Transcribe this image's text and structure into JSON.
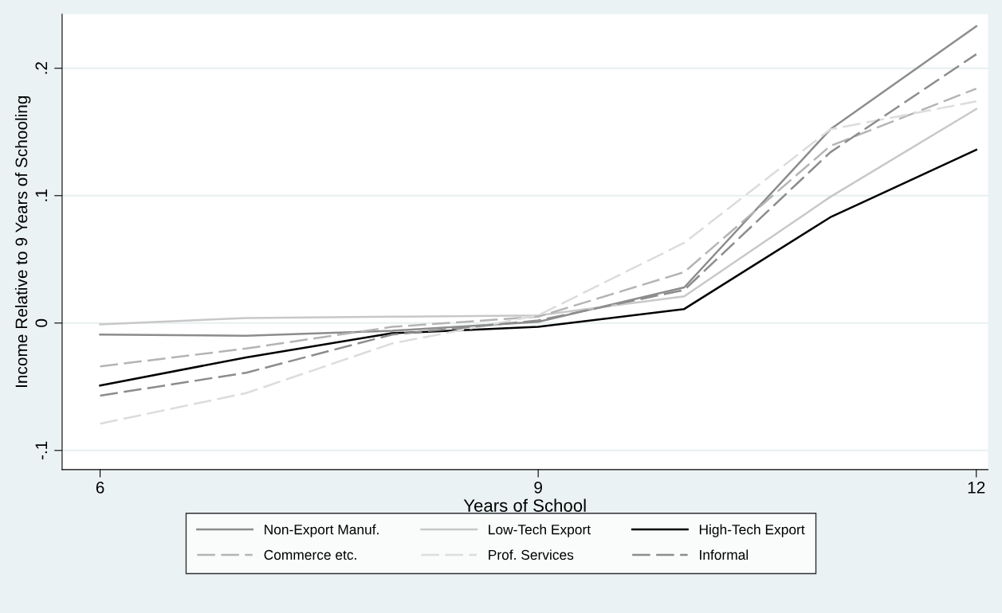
{
  "chart_data": {
    "type": "line",
    "xlabel": "Years of School",
    "ylabel": "Income Relative to 9 Years of Schooling",
    "x": [
      6,
      7,
      8,
      9,
      10,
      11,
      12
    ],
    "xlim": [
      5.74,
      12.08
    ],
    "xticks": [
      6,
      9,
      12
    ],
    "ylim": [
      -0.115,
      0.2425
    ],
    "yticks": [
      {
        "value": -0.1,
        "label": "-.1"
      },
      0,
      {
        "value": 0.1,
        "label": ".1"
      },
      {
        "value": 0.2,
        "label": ".2"
      }
    ],
    "grid": "y",
    "legend": "bottom",
    "marker": "none",
    "series": [
      {
        "name": "Non-Export Manuf.",
        "color": "#8c8c8c",
        "line_style": "solid",
        "values": [
          -0.009,
          -0.01,
          -0.006,
          0.001,
          0.028,
          0.152,
          0.233
        ]
      },
      {
        "name": "Low-Tech Export",
        "color": "#c8c8c8",
        "line_style": "solid",
        "values": [
          -0.001,
          0.004,
          0.005,
          0.006,
          0.021,
          0.099,
          0.168
        ]
      },
      {
        "name": "High-Tech Export",
        "color": "#000000",
        "line_style": "solid",
        "values": [
          -0.049,
          -0.027,
          -0.008,
          -0.003,
          0.011,
          0.083,
          0.136
        ]
      },
      {
        "name": "Commerce etc.",
        "color": "#b4b4b4",
        "line_style": "dashed",
        "values": [
          -0.034,
          -0.02,
          -0.003,
          0.005,
          0.04,
          0.139,
          0.184
        ]
      },
      {
        "name": "Prof. Services",
        "color": "#dcdcdc",
        "line_style": "dashed",
        "values": [
          -0.079,
          -0.055,
          -0.016,
          0.006,
          0.063,
          0.152,
          0.174
        ]
      },
      {
        "name": "Informal",
        "color": "#8c8c8c",
        "line_style": "dashed",
        "values": [
          -0.057,
          -0.039,
          -0.009,
          0.002,
          0.026,
          0.134,
          0.211
        ]
      }
    ]
  }
}
